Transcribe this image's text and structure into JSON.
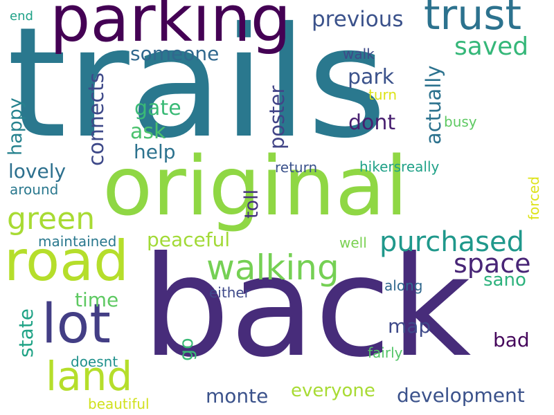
{
  "words": [
    {
      "id": "trails",
      "text": "trails",
      "color": "#2a788e",
      "vertical": false
    },
    {
      "id": "back",
      "text": "back",
      "color": "#472c7a",
      "vertical": false
    },
    {
      "id": "original",
      "text": "original",
      "color": "#8fd744",
      "vertical": false
    },
    {
      "id": "parking",
      "text": "parking",
      "color": "#440154",
      "vertical": false
    },
    {
      "id": "road",
      "text": "road",
      "color": "#b5de2b",
      "vertical": false
    },
    {
      "id": "trust",
      "text": "trust",
      "color": "#2c728e",
      "vertical": false
    },
    {
      "id": "lot",
      "text": "lot",
      "color": "#433e85",
      "vertical": false
    },
    {
      "id": "land",
      "text": "land",
      "color": "#b5de2b",
      "vertical": false
    },
    {
      "id": "walking",
      "text": "walking",
      "color": "#75d054",
      "vertical": false
    },
    {
      "id": "purchased",
      "text": "purchased",
      "color": "#1f988b",
      "vertical": false
    },
    {
      "id": "space",
      "text": "space",
      "color": "#482576",
      "vertical": false
    },
    {
      "id": "green",
      "text": "green",
      "color": "#a8db34",
      "vertical": false
    },
    {
      "id": "saved",
      "text": "saved",
      "color": "#35b779",
      "vertical": false
    },
    {
      "id": "previous",
      "text": "previous",
      "color": "#3b528b",
      "vertical": false
    },
    {
      "id": "connects",
      "text": "connects",
      "color": "#3e4989",
      "vertical": true
    },
    {
      "id": "someone",
      "text": "someone",
      "color": "#31688e",
      "vertical": false
    },
    {
      "id": "park",
      "text": "park",
      "color": "#3b528b",
      "vertical": false
    },
    {
      "id": "actually",
      "text": "actually",
      "color": "#2c728e",
      "vertical": true
    },
    {
      "id": "poster",
      "text": "poster",
      "color": "#414487",
      "vertical": true
    },
    {
      "id": "dont",
      "text": "dont",
      "color": "#481f70",
      "vertical": false
    },
    {
      "id": "gate",
      "text": "gate",
      "color": "#3aba76",
      "vertical": false
    },
    {
      "id": "ask",
      "text": "ask",
      "color": "#4ac16d",
      "vertical": false
    },
    {
      "id": "help",
      "text": "help",
      "color": "#2c728e",
      "vertical": false
    },
    {
      "id": "happy",
      "text": "happy",
      "color": "#26828e",
      "vertical": true
    },
    {
      "id": "lovely",
      "text": "lovely",
      "color": "#2d708e",
      "vertical": false
    },
    {
      "id": "toll",
      "text": "toll",
      "color": "#46337e",
      "vertical": true
    },
    {
      "id": "peaceful",
      "text": "peaceful",
      "color": "#a2da37",
      "vertical": false
    },
    {
      "id": "map",
      "text": "map",
      "color": "#3e4989",
      "vertical": false
    },
    {
      "id": "time",
      "text": "time",
      "color": "#5ec962",
      "vertical": false
    },
    {
      "id": "state",
      "text": "state",
      "color": "#20a386",
      "vertical": true
    },
    {
      "id": "go",
      "text": "go",
      "color": "#3aba76",
      "vertical": true
    },
    {
      "id": "monte",
      "text": "monte",
      "color": "#3b528b",
      "vertical": false
    },
    {
      "id": "everyone",
      "text": "everyone",
      "color": "#a8db34",
      "vertical": false
    },
    {
      "id": "development",
      "text": "development",
      "color": "#3b528b",
      "vertical": false
    },
    {
      "id": "bad",
      "text": "bad",
      "color": "#46085c",
      "vertical": false
    },
    {
      "id": "sano",
      "text": "sano",
      "color": "#2db27d",
      "vertical": false
    },
    {
      "id": "walk",
      "text": "walk",
      "color": "#3e4989",
      "vertical": false
    },
    {
      "id": "turn",
      "text": "turn",
      "color": "#dde318",
      "vertical": false
    },
    {
      "id": "busy",
      "text": "busy",
      "color": "#5ec962",
      "vertical": false
    },
    {
      "id": "return",
      "text": "return",
      "color": "#3b528b",
      "vertical": false
    },
    {
      "id": "hikersreally",
      "text": "hikersreally",
      "color": "#1fa187",
      "vertical": false
    },
    {
      "id": "forced",
      "text": "forced",
      "color": "#dde318",
      "vertical": true
    },
    {
      "id": "around",
      "text": "around",
      "color": "#2a788e",
      "vertical": false
    },
    {
      "id": "maintained",
      "text": "maintained",
      "color": "#2a788e",
      "vertical": false
    },
    {
      "id": "well",
      "text": "well",
      "color": "#7ad151",
      "vertical": false
    },
    {
      "id": "either",
      "text": "either",
      "color": "#3e4989",
      "vertical": false
    },
    {
      "id": "along",
      "text": "along",
      "color": "#31688e",
      "vertical": false
    },
    {
      "id": "doesnt",
      "text": "doesnt",
      "color": "#21918c",
      "vertical": false
    },
    {
      "id": "fairly",
      "text": "fairly",
      "color": "#54c568",
      "vertical": false
    },
    {
      "id": "beautiful",
      "text": "beautiful",
      "color": "#d0e11c",
      "vertical": false
    },
    {
      "id": "end",
      "text": "end",
      "color": "#1fa187",
      "vertical": false
    }
  ]
}
